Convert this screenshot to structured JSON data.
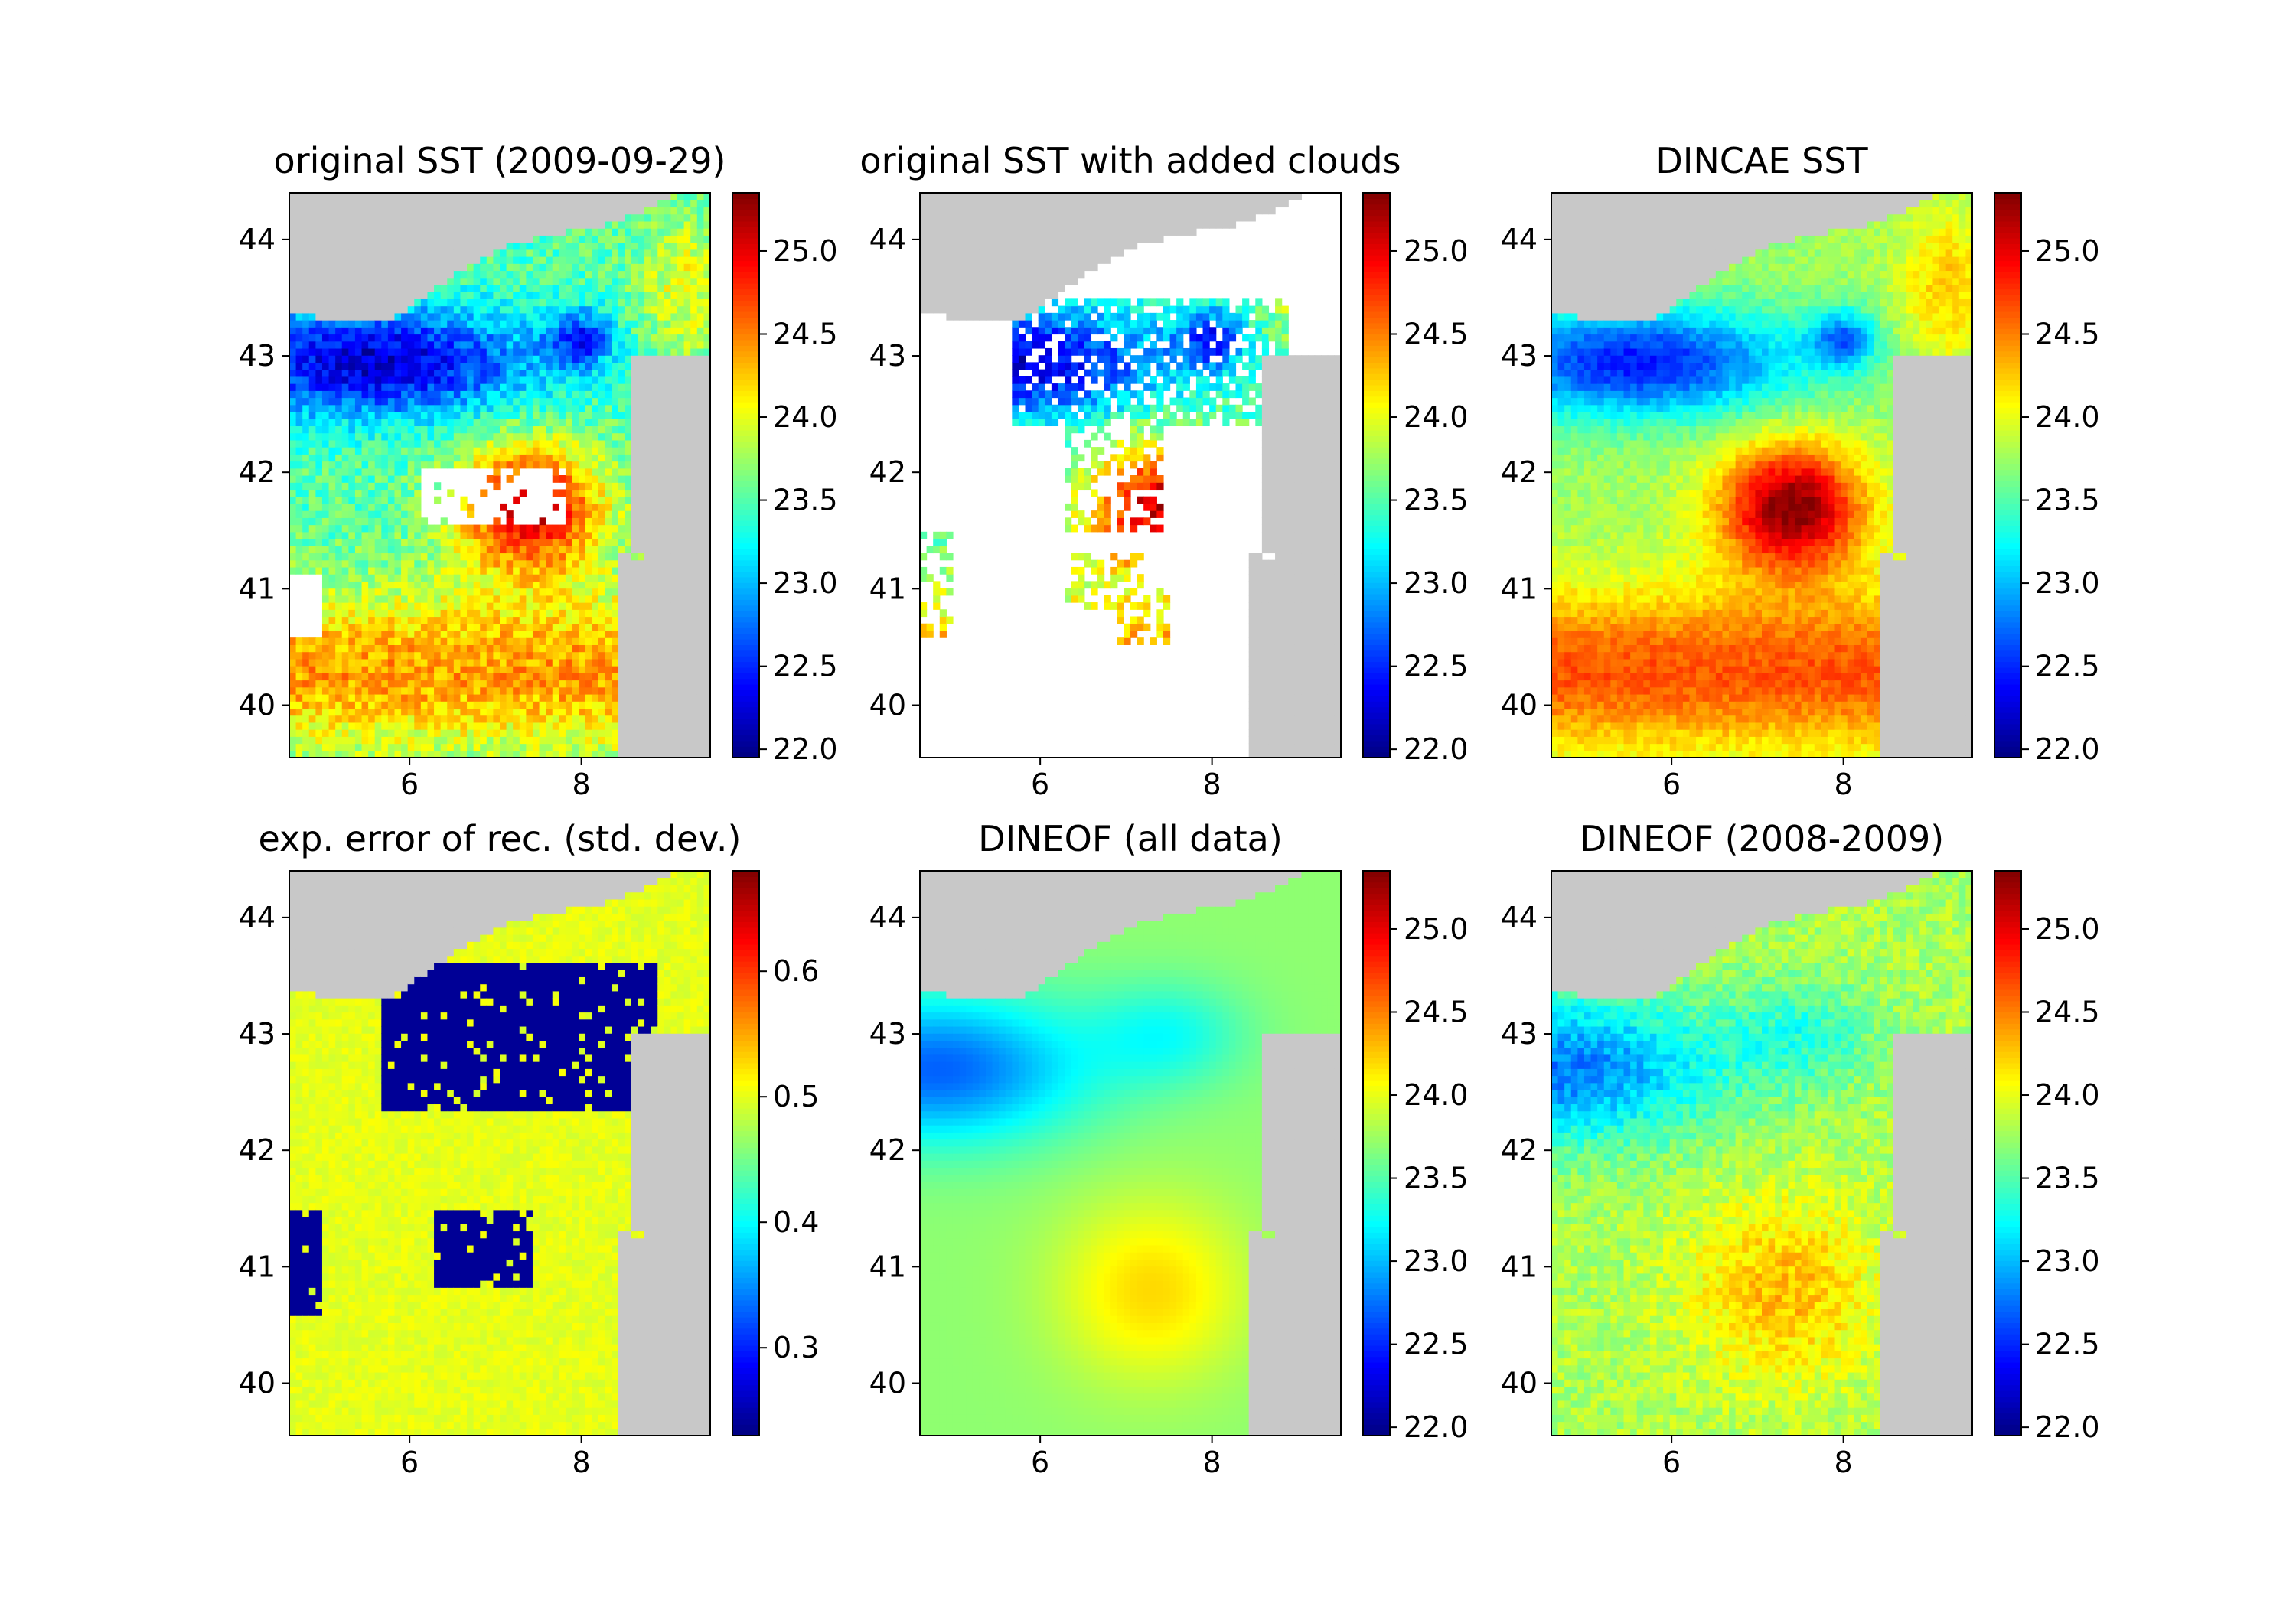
{
  "colors": {
    "land": "#c8c8c8",
    "missing": "#ffffff",
    "frame": "#000000"
  },
  "colormap": "jet",
  "chart_data": [
    {
      "type": "heatmap",
      "title": "original SST (2009-09-29)",
      "field": "original",
      "xlim": [
        4.6,
        9.5
      ],
      "ylim": [
        39.55,
        44.4
      ],
      "xticks": [
        "6",
        "8"
      ],
      "yticks": [
        "40",
        "41",
        "42",
        "43",
        "44"
      ],
      "colorbar": {
        "vmin": 21.95,
        "vmax": 25.35,
        "ticks": [
          "22.0",
          "22.5",
          "23.0",
          "23.5",
          "24.0",
          "24.5",
          "25.0"
        ]
      },
      "grid": false
    },
    {
      "type": "heatmap",
      "title": "original SST with added clouds",
      "field": "clouds",
      "xlim": [
        4.6,
        9.5
      ],
      "ylim": [
        39.55,
        44.4
      ],
      "xticks": [
        "6",
        "8"
      ],
      "yticks": [
        "40",
        "41",
        "42",
        "43",
        "44"
      ],
      "colorbar": {
        "vmin": 21.95,
        "vmax": 25.35,
        "ticks": [
          "22.0",
          "22.5",
          "23.0",
          "23.5",
          "24.0",
          "24.5",
          "25.0"
        ]
      },
      "grid": false
    },
    {
      "type": "heatmap",
      "title": "DINCAE SST",
      "field": "dincae",
      "xlim": [
        4.6,
        9.5
      ],
      "ylim": [
        39.55,
        44.4
      ],
      "xticks": [
        "6",
        "8"
      ],
      "yticks": [
        "40",
        "41",
        "42",
        "43",
        "44"
      ],
      "colorbar": {
        "vmin": 21.95,
        "vmax": 25.35,
        "ticks": [
          "22.0",
          "22.5",
          "23.0",
          "23.5",
          "24.0",
          "24.5",
          "25.0"
        ]
      },
      "grid": false
    },
    {
      "type": "heatmap",
      "title": "exp. error of rec. (std. dev.)",
      "field": "error",
      "xlim": [
        4.6,
        9.5
      ],
      "ylim": [
        39.55,
        44.4
      ],
      "xticks": [
        "6",
        "8"
      ],
      "yticks": [
        "40",
        "41",
        "42",
        "43",
        "44"
      ],
      "colorbar": {
        "vmin": 0.23,
        "vmax": 0.68,
        "ticks": [
          "0.3",
          "0.4",
          "0.5",
          "0.6"
        ]
      },
      "grid": false
    },
    {
      "type": "heatmap",
      "title": "DINEOF (all data)",
      "field": "dineof_all",
      "xlim": [
        4.6,
        9.5
      ],
      "ylim": [
        39.55,
        44.4
      ],
      "xticks": [
        "6",
        "8"
      ],
      "yticks": [
        "40",
        "41",
        "42",
        "43",
        "44"
      ],
      "colorbar": {
        "vmin": 21.95,
        "vmax": 25.35,
        "ticks": [
          "22.0",
          "22.5",
          "23.0",
          "23.5",
          "24.0",
          "24.5",
          "25.0"
        ]
      },
      "grid": false
    },
    {
      "type": "heatmap",
      "title": "DINEOF (2008-2009)",
      "field": "dineof_0809",
      "xlim": [
        4.6,
        9.5
      ],
      "ylim": [
        39.55,
        44.4
      ],
      "xticks": [
        "6",
        "8"
      ],
      "yticks": [
        "40",
        "41",
        "42",
        "43",
        "44"
      ],
      "colorbar": {
        "vmin": 21.95,
        "vmax": 25.35,
        "ticks": [
          "22.0",
          "22.5",
          "23.0",
          "23.5",
          "24.0",
          "24.5",
          "25.0"
        ]
      },
      "grid": false
    }
  ]
}
